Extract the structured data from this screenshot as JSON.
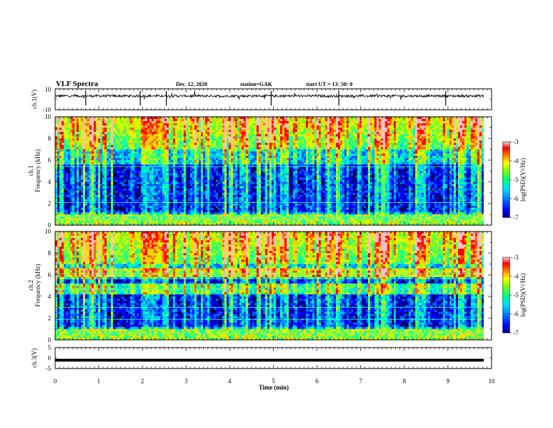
{
  "header": {
    "title": "VLF Spectra",
    "date": "Dec. 12, 2020",
    "station": "station=GAK",
    "start": "start UT = 13: 50: 0"
  },
  "colors": {
    "scale": [
      "#00008f",
      "#0000ff",
      "#0060ff",
      "#00c0ff",
      "#00ffb0",
      "#60ff40",
      "#d0ff00",
      "#ffd000",
      "#ff6000",
      "#ff0000",
      "#ffc0c0"
    ]
  },
  "chart_data": [
    {
      "id": "ch1_waveform",
      "type": "line",
      "ylabel": "ch.1(V)",
      "ylim": [
        -10,
        10
      ],
      "yticks": [
        "10",
        "-10"
      ],
      "xlim": [
        0,
        10
      ]
    },
    {
      "id": "ch1_spectrogram",
      "type": "heatmap",
      "ylabel_line1": "ch.1",
      "ylabel_line2": "Frequency (kHz)",
      "ylim": [
        0,
        10
      ],
      "yticks": [
        "0",
        "2",
        "4",
        "6",
        "8",
        "10"
      ],
      "xlim": [
        0,
        10
      ],
      "colorbar": {
        "label": "log(PSD)(V²/Hz)",
        "range": [
          -7,
          -3
        ],
        "ticks": [
          "-3",
          "-4",
          "-5",
          "-6",
          "-7"
        ]
      }
    },
    {
      "id": "ch2_spectrogram",
      "type": "heatmap",
      "ylabel_line1": "ch.2",
      "ylabel_line2": "Frequency (kHz)",
      "ylim": [
        0,
        10
      ],
      "yticks": [
        "0",
        "2",
        "4",
        "6",
        "8",
        "10"
      ],
      "xlim": [
        0,
        10
      ],
      "colorbar": {
        "label": "log(PSD)(V²/Hz)",
        "range": [
          -7,
          -3
        ],
        "ticks": [
          "-3",
          "-4",
          "-5",
          "-6",
          "-7"
        ]
      }
    },
    {
      "id": "ch3_waveform",
      "type": "line",
      "ylabel": "ch.3(V)",
      "ylim": [
        -5,
        5
      ],
      "yticks": [
        "5",
        "0",
        "-5"
      ],
      "xlim": [
        0,
        10
      ],
      "x": [
        0,
        9.82
      ],
      "y": [
        -1,
        -1
      ],
      "xlabel": "Time (min)",
      "xticks": [
        "0",
        "1",
        "2",
        "3",
        "4",
        "5",
        "6",
        "7",
        "8",
        "9",
        "10"
      ]
    }
  ]
}
